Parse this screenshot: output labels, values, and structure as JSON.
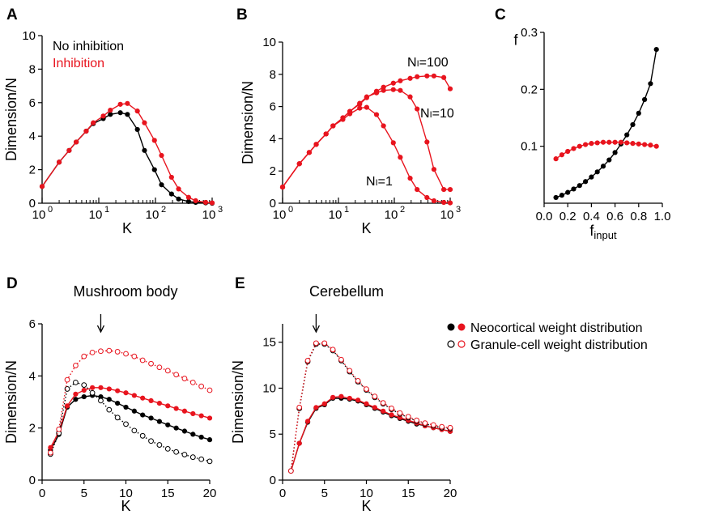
{
  "chart_data": [
    {
      "panel": "A",
      "type": "line",
      "title": "",
      "xlabel": "K",
      "ylabel": "Dimension/N",
      "xscale": "log",
      "xlim": [
        1,
        1000
      ],
      "ylim": [
        0,
        10
      ],
      "xticks": [
        "10",
        "10",
        "10",
        "10"
      ],
      "xtick_exps": [
        "0",
        "1",
        "2",
        "3"
      ],
      "yticks": [
        "0",
        "2",
        "4",
        "6",
        "8",
        "10"
      ],
      "legend": [
        "No inhibition",
        "Inhibition"
      ],
      "legend_colors": [
        "#000000",
        "#e8141e"
      ],
      "series": [
        {
          "name": "No inhibition",
          "color": "#000000",
          "style": "solid",
          "marker": "filled",
          "x": [
            1,
            2,
            3,
            4,
            6,
            8,
            12,
            16,
            24,
            32,
            48,
            64,
            96,
            128,
            192,
            256,
            384,
            512,
            768,
            1000
          ],
          "y": [
            1.0,
            2.45,
            3.15,
            3.65,
            4.3,
            4.75,
            5.05,
            5.3,
            5.4,
            5.3,
            4.4,
            3.15,
            2.0,
            1.1,
            0.55,
            0.25,
            0.1,
            0.05,
            0.02,
            0.0
          ]
        },
        {
          "name": "Inhibition",
          "color": "#e8141e",
          "style": "solid",
          "marker": "filled",
          "x": [
            1,
            2,
            3,
            4,
            6,
            8,
            12,
            16,
            24,
            32,
            48,
            64,
            96,
            128,
            192,
            256,
            384,
            512,
            768,
            1000
          ],
          "y": [
            1.0,
            2.45,
            3.15,
            3.65,
            4.3,
            4.8,
            5.2,
            5.55,
            5.9,
            5.95,
            5.5,
            4.8,
            3.75,
            2.85,
            1.55,
            0.85,
            0.35,
            0.15,
            0.05,
            0.02
          ]
        }
      ]
    },
    {
      "panel": "B",
      "type": "line",
      "title": "",
      "xlabel": "K",
      "ylabel": "Dimension/N",
      "xscale": "log",
      "xlim": [
        1,
        1000
      ],
      "ylim": [
        0,
        10
      ],
      "xticks": [
        "10",
        "10",
        "10",
        "10"
      ],
      "xtick_exps": [
        "0",
        "1",
        "2",
        "3"
      ],
      "yticks": [
        "0",
        "2",
        "4",
        "6",
        "8",
        "10"
      ],
      "annotations": [
        {
          "main": "N",
          "sub": "I",
          "suffix": "=100"
        },
        {
          "main": "N",
          "sub": "I",
          "suffix": "=10"
        },
        {
          "main": "N",
          "sub": "I",
          "suffix": "=1"
        }
      ],
      "series": [
        {
          "name": "NI=1",
          "color": "#e8141e",
          "style": "solid",
          "marker": "filled",
          "x": [
            1,
            2,
            3,
            4,
            6,
            8,
            12,
            16,
            24,
            32,
            48,
            64,
            96,
            128,
            192,
            256,
            384,
            512,
            768,
            1000
          ],
          "y": [
            1.0,
            2.45,
            3.15,
            3.65,
            4.3,
            4.8,
            5.2,
            5.55,
            5.9,
            5.95,
            5.5,
            4.8,
            3.75,
            2.85,
            1.55,
            0.85,
            0.35,
            0.15,
            0.05,
            0.02
          ]
        },
        {
          "name": "NI=10",
          "color": "#e8141e",
          "style": "solid",
          "marker": "filled",
          "x": [
            1,
            2,
            3,
            4,
            6,
            8,
            12,
            16,
            24,
            32,
            48,
            64,
            96,
            128,
            192,
            256,
            384,
            512,
            768,
            1000
          ],
          "y": [
            1.0,
            2.45,
            3.15,
            3.65,
            4.3,
            4.8,
            5.3,
            5.7,
            6.2,
            6.6,
            6.85,
            7.0,
            7.05,
            7.0,
            6.6,
            5.85,
            3.8,
            2.1,
            0.85,
            0.85
          ]
        },
        {
          "name": "NI=100",
          "color": "#e8141e",
          "style": "solid",
          "marker": "filled",
          "x": [
            1,
            2,
            3,
            4,
            6,
            8,
            12,
            16,
            24,
            32,
            48,
            64,
            96,
            128,
            192,
            256,
            384,
            512,
            768,
            1000
          ],
          "y": [
            1.0,
            2.45,
            3.15,
            3.65,
            4.3,
            4.8,
            5.3,
            5.7,
            6.15,
            6.55,
            6.95,
            7.2,
            7.45,
            7.6,
            7.75,
            7.85,
            7.9,
            7.9,
            7.8,
            7.1
          ]
        }
      ]
    },
    {
      "panel": "C",
      "type": "line",
      "title": "",
      "xlabel": "f",
      "xlabel_sub": "input",
      "ylabel": "f",
      "xlim": [
        0,
        1
      ],
      "ylim": [
        0,
        0.3
      ],
      "xticks": [
        "0.0",
        "0.2",
        "0.4",
        "0.6",
        "0.8",
        "1.0"
      ],
      "yticks": [
        "0.1",
        "0.2",
        "0.3"
      ],
      "series": [
        {
          "name": "",
          "color": "#000000",
          "style": "solid",
          "marker": "filled",
          "x": [
            0.1,
            0.15,
            0.2,
            0.25,
            0.3,
            0.35,
            0.4,
            0.45,
            0.5,
            0.55,
            0.6,
            0.65,
            0.7,
            0.75,
            0.8,
            0.85,
            0.9,
            0.95
          ],
          "y": [
            0.01,
            0.014,
            0.019,
            0.025,
            0.031,
            0.038,
            0.046,
            0.055,
            0.065,
            0.076,
            0.089,
            0.104,
            0.12,
            0.138,
            0.158,
            0.182,
            0.21,
            0.27
          ]
        },
        {
          "name": "",
          "color": "#e8141e",
          "style": "solid",
          "marker": "filled",
          "x": [
            0.1,
            0.15,
            0.2,
            0.25,
            0.3,
            0.35,
            0.4,
            0.45,
            0.5,
            0.55,
            0.6,
            0.65,
            0.7,
            0.75,
            0.8,
            0.85,
            0.9,
            0.95
          ],
          "y": [
            0.078,
            0.085,
            0.091,
            0.096,
            0.1,
            0.103,
            0.105,
            0.106,
            0.107,
            0.107,
            0.107,
            0.107,
            0.106,
            0.105,
            0.104,
            0.103,
            0.102,
            0.1
          ]
        }
      ]
    },
    {
      "panel": "D",
      "type": "line",
      "title": "Mushroom body",
      "xlabel": "K",
      "ylabel": "Dimension/N",
      "xlim": [
        0,
        20
      ],
      "ylim": [
        0,
        6
      ],
      "xticks": [
        "0",
        "5",
        "10",
        "15",
        "20"
      ],
      "yticks": [
        "0",
        "2",
        "4",
        "6"
      ],
      "arrow_at_x": 7,
      "series": [
        {
          "name": "",
          "color": "#000000",
          "style": "solid",
          "marker": "filled",
          "x": [
            1,
            2,
            3,
            4,
            5,
            6,
            7,
            8,
            9,
            10,
            11,
            12,
            13,
            14,
            15,
            16,
            17,
            18,
            19,
            20
          ],
          "y": [
            1.15,
            1.75,
            2.8,
            3.1,
            3.2,
            3.25,
            3.2,
            3.1,
            2.95,
            2.8,
            2.65,
            2.5,
            2.38,
            2.25,
            2.12,
            2.0,
            1.88,
            1.76,
            1.65,
            1.55
          ]
        },
        {
          "name": "",
          "color": "#e8141e",
          "style": "solid",
          "marker": "filled",
          "x": [
            1,
            2,
            3,
            4,
            5,
            6,
            7,
            8,
            9,
            10,
            11,
            12,
            13,
            14,
            15,
            16,
            17,
            18,
            19,
            20
          ],
          "y": [
            1.25,
            1.85,
            2.85,
            3.3,
            3.45,
            3.55,
            3.55,
            3.5,
            3.43,
            3.35,
            3.25,
            3.15,
            3.05,
            2.95,
            2.85,
            2.75,
            2.65,
            2.55,
            2.47,
            2.38
          ]
        },
        {
          "name": "",
          "color": "#000000",
          "style": "dotted",
          "marker": "open",
          "x": [
            1,
            2,
            3,
            4,
            5,
            6,
            7,
            8,
            9,
            10,
            11,
            12,
            13,
            14,
            15,
            16,
            17,
            18,
            19,
            20
          ],
          "y": [
            1.0,
            1.8,
            3.5,
            3.75,
            3.65,
            3.35,
            3.05,
            2.7,
            2.4,
            2.15,
            1.9,
            1.7,
            1.5,
            1.35,
            1.2,
            1.08,
            0.98,
            0.88,
            0.8,
            0.72
          ]
        },
        {
          "name": "",
          "color": "#e8141e",
          "style": "dotted",
          "marker": "open",
          "x": [
            1,
            2,
            3,
            4,
            5,
            6,
            7,
            8,
            9,
            10,
            11,
            12,
            13,
            14,
            15,
            16,
            17,
            18,
            19,
            20
          ],
          "y": [
            1.05,
            1.95,
            3.85,
            4.4,
            4.75,
            4.9,
            4.95,
            4.97,
            4.93,
            4.85,
            4.75,
            4.6,
            4.47,
            4.33,
            4.2,
            4.05,
            3.9,
            3.75,
            3.6,
            3.45
          ]
        }
      ]
    },
    {
      "panel": "E",
      "type": "line",
      "title": "Cerebellum",
      "xlabel": "K",
      "ylabel": "Dimension/N",
      "xlim": [
        0,
        20
      ],
      "ylim": [
        0,
        17
      ],
      "xticks": [
        "0",
        "5",
        "10",
        "15",
        "20"
      ],
      "yticks": [
        "0",
        "5",
        "10",
        "15"
      ],
      "arrow_at_x": 4,
      "legend": [
        "Neocortical weight distribution",
        "Granule-cell weight distribution"
      ],
      "series": [
        {
          "name": "",
          "color": "#000000",
          "style": "solid",
          "marker": "filled",
          "x": [
            1,
            2,
            3,
            4,
            5,
            6,
            7,
            8,
            9,
            10,
            11,
            12,
            13,
            14,
            15,
            16,
            17,
            18,
            19,
            20
          ],
          "y": [
            1.0,
            4.0,
            6.3,
            7.8,
            8.2,
            8.9,
            8.9,
            8.8,
            8.6,
            8.2,
            7.8,
            7.4,
            7.0,
            6.7,
            6.4,
            6.1,
            5.9,
            5.7,
            5.5,
            5.3
          ]
        },
        {
          "name": "",
          "color": "#e8141e",
          "style": "solid",
          "marker": "filled",
          "x": [
            1,
            2,
            3,
            4,
            5,
            6,
            7,
            8,
            9,
            10,
            11,
            12,
            13,
            14,
            15,
            16,
            17,
            18,
            19,
            20
          ],
          "y": [
            1.0,
            4.0,
            6.4,
            7.9,
            8.3,
            9.0,
            9.1,
            8.9,
            8.7,
            8.3,
            7.9,
            7.5,
            7.1,
            6.8,
            6.5,
            6.2,
            5.9,
            5.7,
            5.5,
            5.3
          ]
        },
        {
          "name": "",
          "color": "#000000",
          "style": "dotted",
          "marker": "open",
          "x": [
            1,
            2,
            3,
            4,
            5,
            6,
            7,
            8,
            9,
            10,
            11,
            12,
            13,
            14,
            15,
            16,
            17,
            18,
            19,
            20
          ],
          "y": [
            1.0,
            7.8,
            12.9,
            14.8,
            14.8,
            14.1,
            13.0,
            11.8,
            10.7,
            9.8,
            9.0,
            8.3,
            7.7,
            7.2,
            6.8,
            6.4,
            6.1,
            5.9,
            5.7,
            5.6
          ]
        },
        {
          "name": "",
          "color": "#e8141e",
          "style": "dotted",
          "marker": "open",
          "x": [
            1,
            2,
            3,
            4,
            5,
            6,
            7,
            8,
            9,
            10,
            11,
            12,
            13,
            14,
            15,
            16,
            17,
            18,
            19,
            20
          ],
          "y": [
            1.0,
            7.9,
            13.0,
            14.9,
            14.9,
            14.2,
            13.1,
            11.9,
            10.8,
            9.9,
            9.1,
            8.4,
            7.8,
            7.3,
            6.9,
            6.5,
            6.2,
            6.0,
            5.8,
            5.7
          ]
        }
      ]
    }
  ],
  "panel_labels": [
    "A",
    "B",
    "C",
    "D",
    "E"
  ],
  "colors": {
    "red": "#e8141e",
    "black": "#000000"
  }
}
